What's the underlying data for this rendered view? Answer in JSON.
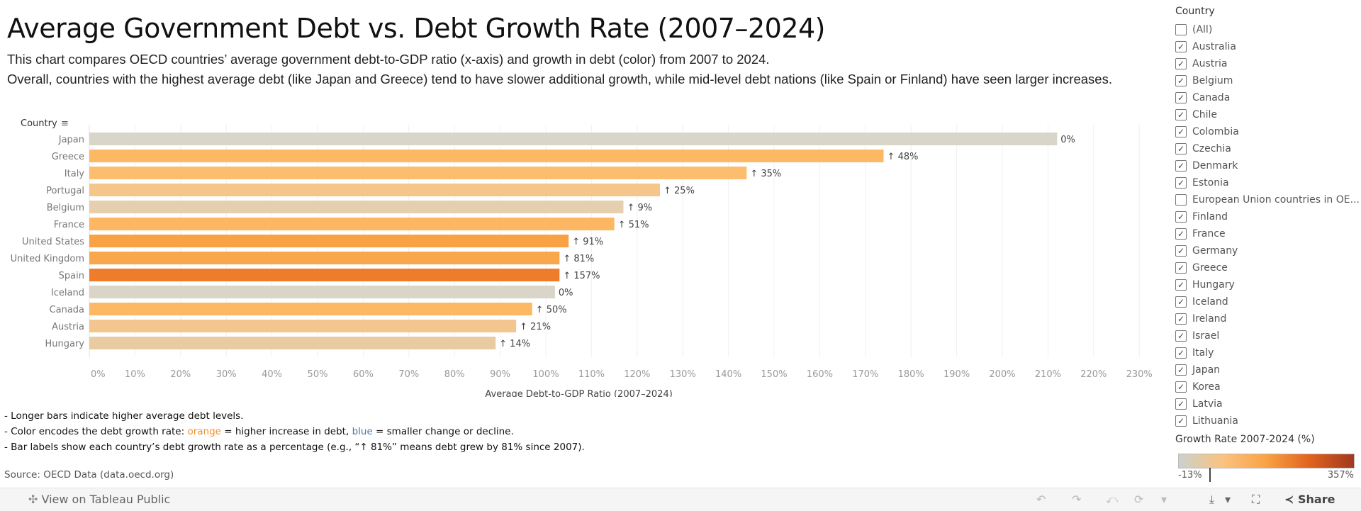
{
  "header": {
    "title": "Average Government Debt vs. Debt Growth Rate (2007–2024)",
    "subtitle_lines": [
      "This chart compares OECD countries’ average government debt-to-GDP ratio (x-axis) and growth in debt (color) from 2007 to 2024.",
      "Overall, countries with the highest average debt (like Japan and Greece) tend to have slower additional growth, while mid-level debt nations (like Spain or Finland) have seen larger",
      "increases."
    ]
  },
  "chart_data": {
    "type": "bar",
    "orientation": "horizontal",
    "row_header": "Country",
    "xlabel": "Average Debt-to-GDP Ratio (2007–2024)",
    "xlim": [
      0,
      232
    ],
    "xticks": [
      "0%",
      "10%",
      "20%",
      "30%",
      "40%",
      "50%",
      "60%",
      "70%",
      "80%",
      "90%",
      "100%",
      "110%",
      "120%",
      "130%",
      "140%",
      "150%",
      "160%",
      "170%",
      "180%",
      "190%",
      "200%",
      "210%",
      "220%",
      "230%"
    ],
    "grid": true,
    "categories": [
      "Japan",
      "Greece",
      "Italy",
      "Portugal",
      "Belgium",
      "France",
      "United States",
      "United Kingdom",
      "Spain",
      "Iceland",
      "Canada",
      "Austria",
      "Hungary"
    ],
    "values": [
      212,
      174,
      144,
      125,
      117,
      115,
      105,
      103,
      103,
      102,
      97,
      93.5,
      89
    ],
    "growth": [
      0,
      48,
      35,
      25,
      9,
      51,
      91,
      81,
      157,
      0,
      50,
      21,
      14
    ],
    "labels": [
      "0%",
      "↑ 48%",
      "↑ 35%",
      "↑ 25%",
      "↑ 9%",
      "↑ 51%",
      "↑ 91%",
      "↑ 81%",
      "↑ 157%",
      "0%",
      "↑ 50%",
      "↑ 21%",
      "↑ 14%"
    ],
    "bar_colors": [
      "#d9d5c9",
      "#fdb863",
      "#fdbd6f",
      "#f5c58a",
      "#e6cfae",
      "#fdb762",
      "#f9a244",
      "#f9a74c",
      "#ee7c2a",
      "#d9d5c9",
      "#fdb863",
      "#f3c690",
      "#e8cba0"
    ]
  },
  "filter": {
    "title": "Country",
    "items": [
      {
        "label": "(All)",
        "checked": false
      },
      {
        "label": "Australia",
        "checked": true
      },
      {
        "label": "Austria",
        "checked": true
      },
      {
        "label": "Belgium",
        "checked": true
      },
      {
        "label": "Canada",
        "checked": true
      },
      {
        "label": "Chile",
        "checked": true
      },
      {
        "label": "Colombia",
        "checked": true
      },
      {
        "label": "Czechia",
        "checked": true
      },
      {
        "label": "Denmark",
        "checked": true
      },
      {
        "label": "Estonia",
        "checked": true
      },
      {
        "label": "European Union countries in OE...",
        "checked": false
      },
      {
        "label": "Finland",
        "checked": true
      },
      {
        "label": "France",
        "checked": true
      },
      {
        "label": "Germany",
        "checked": true
      },
      {
        "label": "Greece",
        "checked": true
      },
      {
        "label": "Hungary",
        "checked": true
      },
      {
        "label": "Iceland",
        "checked": true
      },
      {
        "label": "Ireland",
        "checked": true
      },
      {
        "label": "Israel",
        "checked": true
      },
      {
        "label": "Italy",
        "checked": true
      },
      {
        "label": "Japan",
        "checked": true
      },
      {
        "label": "Korea",
        "checked": true
      },
      {
        "label": "Latvia",
        "checked": true
      },
      {
        "label": "Lithuania",
        "checked": true
      }
    ]
  },
  "legend": {
    "title": "Growth Rate 2007-2024 (%)",
    "min_label": "-13%",
    "max_label": "357%",
    "gradient": [
      "#c9d1cd",
      "#fbc37f",
      "#f9a244",
      "#e0621f",
      "#a0391f"
    ]
  },
  "notes": {
    "line1": "- Longer bars indicate higher average debt levels.",
    "line2_a": "- Color encodes the debt growth rate: ",
    "line2_orange": "orange",
    "line2_b": " = higher increase in debt, ",
    "line2_blue": "blue",
    "line2_c": " = smaller change or decline.",
    "line3": "- Bar labels show each country’s debt growth rate as a percentage (e.g., “↑ 81%” means debt grew by 81% since 2007).",
    "source": "Source: OECD Data (data.oecd.org)"
  },
  "toolbar": {
    "view_label": "View on Tableau Public",
    "share_label": "Share",
    "undo": "↶",
    "redo": "↷",
    "revert": "⤺",
    "refresh": "⟳",
    "dropdown": "▾",
    "download": "⤓",
    "fullscreen": "⛶",
    "share_icon": "≺"
  }
}
